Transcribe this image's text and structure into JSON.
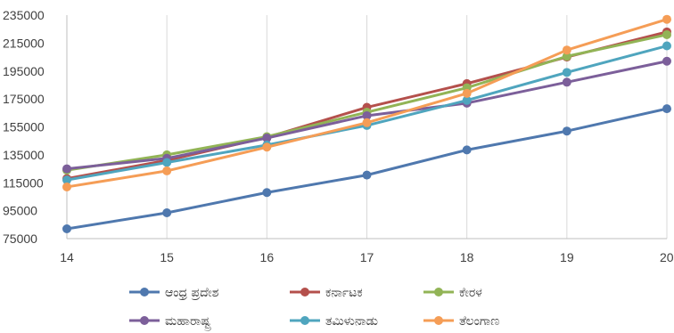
{
  "chart_data": {
    "type": "line",
    "title": "",
    "xlabel": "",
    "ylabel": "",
    "x": [
      "14",
      "15",
      "16",
      "17",
      "18",
      "19",
      "20"
    ],
    "ylim": [
      75000,
      235000
    ],
    "yticks": [
      75000,
      95000,
      115000,
      135000,
      155000,
      175000,
      195000,
      215000,
      235000
    ],
    "grid": "vertical",
    "legend_position": "bottom",
    "series": [
      {
        "name": "ಆಂಧ್ರ ಪ್ರದೇಶ",
        "color": "#4F78AE",
        "values": [
          82000,
          93500,
          108000,
          120500,
          138500,
          152000,
          168000
        ]
      },
      {
        "name": "ಕರ್ನಾಟಕ",
        "color": "#B4504C",
        "values": [
          118000,
          131000,
          147500,
          169000,
          186000,
          205000,
          223000
        ]
      },
      {
        "name": "ಕೇರಳ",
        "color": "#92B456",
        "values": [
          124000,
          135000,
          148000,
          165500,
          183000,
          205500,
          221000
        ]
      },
      {
        "name": "ಮಹಾರಾಷ್ಟ್ರ",
        "color": "#7C5F9A",
        "values": [
          125000,
          132500,
          147000,
          163000,
          172000,
          187000,
          202000
        ]
      },
      {
        "name": "ತಮಿಳುನಾಡು",
        "color": "#4FA5BE",
        "values": [
          117000,
          129500,
          142000,
          156000,
          174000,
          194000,
          213000
        ]
      },
      {
        "name": "ತೆಲಂಗಾಣ",
        "color": "#F59D56",
        "values": [
          112000,
          123500,
          140500,
          158000,
          179000,
          210000,
          232000
        ]
      }
    ]
  }
}
